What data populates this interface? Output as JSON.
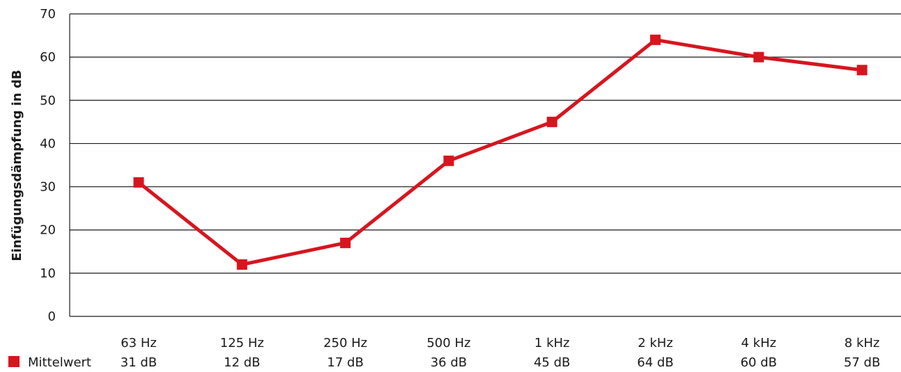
{
  "chart_data": {
    "type": "line",
    "ylabel": "Einfügungsdämpfung in dB",
    "ylim": [
      0,
      70
    ],
    "yticks": [
      0,
      10,
      20,
      30,
      40,
      50,
      60,
      70
    ],
    "grid": true,
    "categories": [
      "63 Hz",
      "125 Hz",
      "250 Hz",
      "500 Hz",
      "1 kHz",
      "2 kHz",
      "4 kHz",
      "8 kHz"
    ],
    "series": [
      {
        "name": "Mittelwert",
        "values": [
          31,
          12,
          17,
          36,
          45,
          64,
          60,
          57
        ],
        "value_labels": [
          "31 dB",
          "12 dB",
          "17 dB",
          "36 dB",
          "45 dB",
          "64 dB",
          "60 dB",
          "57 dB"
        ],
        "color": "#d7151f"
      }
    ],
    "legend_position": "bottom-left"
  }
}
